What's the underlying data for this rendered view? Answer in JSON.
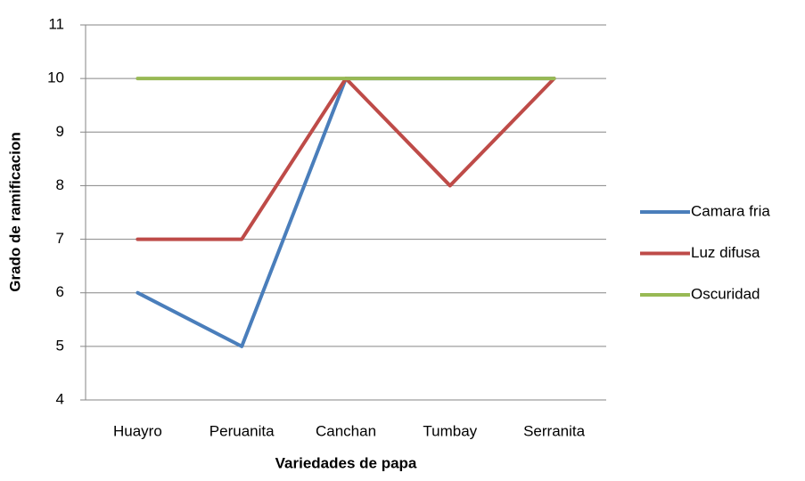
{
  "chart_data": {
    "type": "line",
    "x_label": "Variedades de papa",
    "y_label": "Grado de ramificacion",
    "categories": [
      "Huayro",
      "Peruanita",
      "Canchan",
      "Tumbay",
      "Serranita"
    ],
    "series": [
      {
        "name": "Camara fria",
        "color": "#4a7ebb",
        "values": [
          6,
          5,
          10,
          10,
          10
        ]
      },
      {
        "name": "Luz difusa",
        "color": "#be4b48",
        "values": [
          7,
          7,
          10,
          8,
          10
        ]
      },
      {
        "name": "Oscuridad",
        "color": "#98b954",
        "values": [
          10,
          10,
          10,
          10,
          10
        ]
      }
    ],
    "ylim": [
      4,
      11
    ],
    "yticks": [
      4,
      5,
      6,
      7,
      8,
      9,
      10,
      11
    ],
    "grid": true,
    "legend": "right"
  }
}
